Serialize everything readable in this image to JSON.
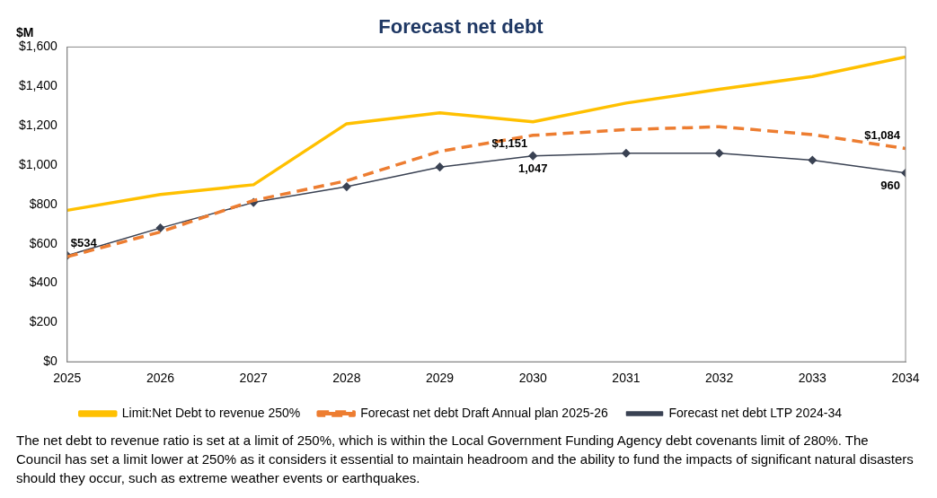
{
  "chart_data": {
    "type": "line",
    "title": "Forecast net debt",
    "ylabel": "$M",
    "x": [
      2025,
      2026,
      2027,
      2028,
      2029,
      2030,
      2031,
      2032,
      2033,
      2034
    ],
    "xlim": [
      2025,
      2034
    ],
    "xticks": [
      2025,
      2026,
      2027,
      2028,
      2029,
      2030,
      2031,
      2032,
      2033,
      2034
    ],
    "ylim": [
      0,
      1600
    ],
    "yticks": [
      {
        "value": 0,
        "label": "$0"
      },
      {
        "value": 200,
        "label": "$200"
      },
      {
        "value": 400,
        "label": "$400"
      },
      {
        "value": 600,
        "label": "$600"
      },
      {
        "value": 800,
        "label": "$800"
      },
      {
        "value": 1000,
        "label": "$1,000"
      },
      {
        "value": 1200,
        "label": "$1,200"
      },
      {
        "value": 1400,
        "label": "$1,400"
      },
      {
        "value": 1600,
        "label": "$1,600"
      }
    ],
    "grid": false,
    "legend": "bottom",
    "series": [
      {
        "name": "Limit:Net Debt to revenue 250%",
        "color": "#ffc000",
        "line_style": "solid",
        "marker": "none",
        "values": [
          770,
          850,
          900,
          1210,
          1265,
          1220,
          1315,
          1385,
          1450,
          1550
        ]
      },
      {
        "name": "Forecast net debt Draft Annual plan 2025-26",
        "color": "#ed7d31",
        "line_style": "dashed",
        "marker": "none",
        "values": [
          534,
          660,
          820,
          920,
          1070,
          1151,
          1180,
          1195,
          1155,
          1084
        ],
        "value_labels": [
          "$534",
          null,
          null,
          null,
          null,
          "$1,151",
          null,
          null,
          null,
          "$1,084"
        ]
      },
      {
        "name": "Forecast net debt LTP 2024-34",
        "color": "#3a4253",
        "line_style": "solid",
        "marker": "diamond",
        "values": [
          540,
          680,
          810,
          890,
          990,
          1047,
          1060,
          1060,
          1025,
          960
        ],
        "value_labels": [
          null,
          null,
          null,
          null,
          null,
          "1,047",
          null,
          null,
          null,
          "960"
        ]
      }
    ],
    "annotations": [
      "The net debt to revenue ratio is set at a limit of 250%, which is within the Local Government Funding Agency debt covenants limit of 280%. The Council has set a limit lower at 250% as it considers it essential to maintain headroom and the ability to fund the impacts of significant natural disasters should they occur, such as extreme weather events or earthquakes."
    ]
  }
}
